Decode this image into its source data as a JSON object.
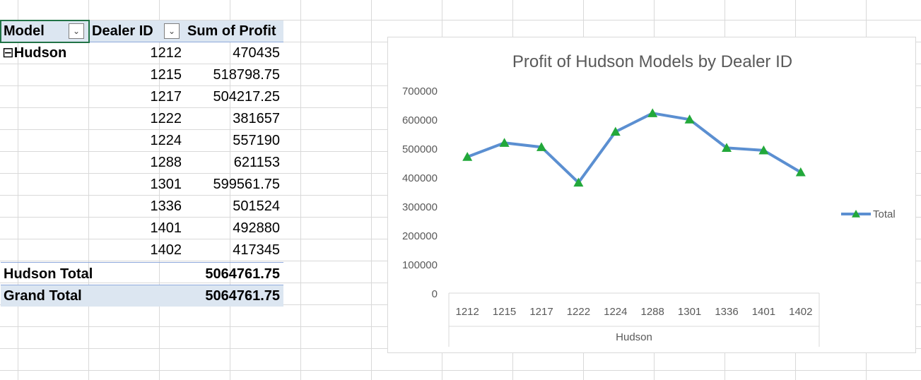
{
  "pivot": {
    "headers": {
      "model": "Model",
      "dealer_id": "Dealer ID",
      "sum_profit": "Sum of Profit"
    },
    "model_name": "Hudson",
    "collapse_glyph": "⊟",
    "rows": [
      {
        "dealer": "1212",
        "profit": "470435"
      },
      {
        "dealer": "1215",
        "profit": "518798.75"
      },
      {
        "dealer": "1217",
        "profit": "504217.25"
      },
      {
        "dealer": "1222",
        "profit": "381657"
      },
      {
        "dealer": "1224",
        "profit": "557190"
      },
      {
        "dealer": "1288",
        "profit": "621153"
      },
      {
        "dealer": "1301",
        "profit": "599561.75"
      },
      {
        "dealer": "1336",
        "profit": "501524"
      },
      {
        "dealer": "1401",
        "profit": "492880"
      },
      {
        "dealer": "1402",
        "profit": "417345"
      }
    ],
    "subtotal_label": "Hudson Total",
    "subtotal_value": "5064761.75",
    "grand_total_label": "Grand Total",
    "grand_total_value": "5064761.75",
    "icons": {
      "model_filter": "filter-dropdown-icon",
      "dealer_filter": "dropdown-icon"
    }
  },
  "chart_data": {
    "type": "line",
    "title": "Profit of Hudson Models by Dealer ID",
    "categories": [
      "1212",
      "1215",
      "1217",
      "1222",
      "1224",
      "1288",
      "1301",
      "1336",
      "1401",
      "1402"
    ],
    "group_label": "Hudson",
    "series": [
      {
        "name": "Total",
        "values": [
          470435,
          518798.75,
          504217.25,
          381657,
          557190,
          621153,
          599561.75,
          501524,
          492880,
          417345
        ]
      }
    ],
    "ylim": [
      0,
      700000
    ],
    "yticks": [
      0,
      100000,
      200000,
      300000,
      400000,
      500000,
      600000,
      700000
    ],
    "grid": false,
    "legend": "right",
    "line_color": "#5b8fd1",
    "marker_color": "#22a83a",
    "marker": "triangle"
  }
}
